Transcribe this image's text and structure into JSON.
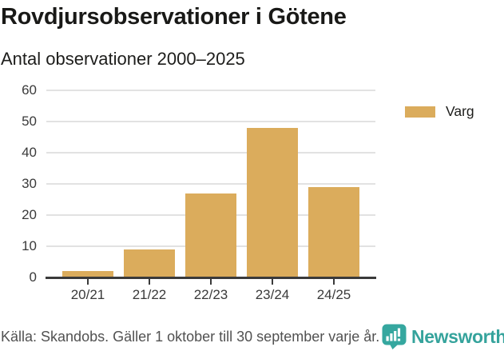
{
  "header": {
    "title": "Rovdjursobservationer i Götene",
    "subtitle": "Antal observationer 2000–2025"
  },
  "chart_data": {
    "type": "bar",
    "categories": [
      "20/21",
      "21/22",
      "22/23",
      "23/24",
      "24/25"
    ],
    "series": [
      {
        "name": "Varg",
        "values": [
          2,
          9,
          27,
          48,
          29
        ]
      }
    ],
    "title": "Rovdjursobservationer i Götene",
    "subtitle": "Antal observationer 2000–2025",
    "xlabel": "",
    "ylabel": "",
    "ylim": [
      0,
      60
    ],
    "ytick_interval": 10,
    "yticks": [
      0,
      10,
      20,
      30,
      40,
      50,
      60
    ],
    "grid": true,
    "legend_position": "right",
    "bar_color": "#DBAC5C"
  },
  "legend": {
    "label": "Varg",
    "color": "#DBAC5C"
  },
  "footer": {
    "source": "Källa: Skandobs. Gäller 1 oktober till 30 september varje år.",
    "brand": "Newsworthy",
    "brand_color": "#35A39C",
    "logo_icon": "newsworthy-speech-bubble-chart-icon"
  },
  "colors": {
    "background": "#FFFFFF",
    "bar": "#DBAC5C",
    "gridline": "#E2E2E2",
    "axis": "#3A3A3A",
    "title_text": "#191917",
    "source_text": "#515151",
    "brand_teal": "#35A39C"
  }
}
